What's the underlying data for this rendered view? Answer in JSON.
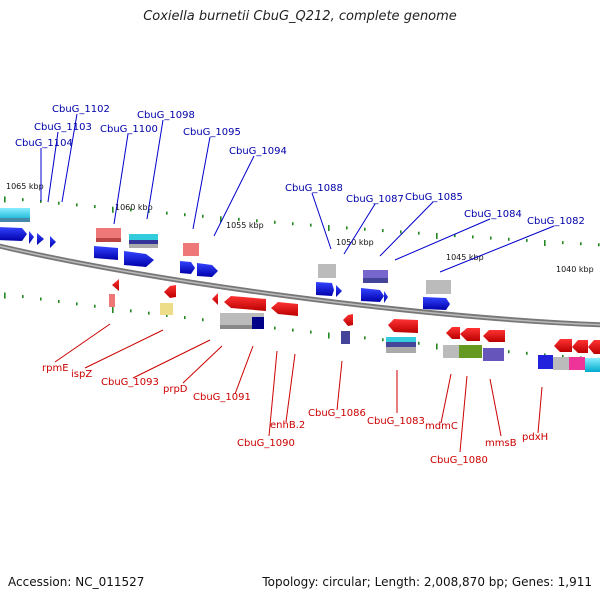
{
  "title": "Coxiella burnetii CbuG_Q212, complete genome",
  "footer": {
    "accession": "Accession: NC_011527",
    "stats": "Topology: circular; Length: 2,008,870 bp; Genes: 1,911"
  },
  "scale_labels": [
    "1065 kbp",
    "1060 kbp",
    "1055 kbp",
    "1050 kbp",
    "1045 kbp",
    "1040 kbp"
  ],
  "forward_genes": [
    "CbuG_1104",
    "CbuG_1103",
    "CbuG_1102",
    "CbuG_1100",
    "CbuG_1098",
    "CbuG_1095",
    "CbuG_1094",
    "CbuG_1088",
    "CbuG_1087",
    "CbuG_1085",
    "CbuG_1084",
    "CbuG_1082"
  ],
  "reverse_genes": [
    "rpmE",
    "ispZ",
    "CbuG_1093",
    "prpD",
    "CbuG_1091",
    "CbuG_1090",
    "enhB.2",
    "CbuG_1086",
    "CbuG_1083",
    "mdmC",
    "CbuG_1080",
    "mmsB",
    "pdxH"
  ],
  "colors": {
    "backbone": "#888888",
    "forward_gene": "#0000ee",
    "reverse_gene": "#ee0000",
    "forward_label": "#0000aa",
    "reverse_label": "#cc0000",
    "tick": "#228822"
  }
}
